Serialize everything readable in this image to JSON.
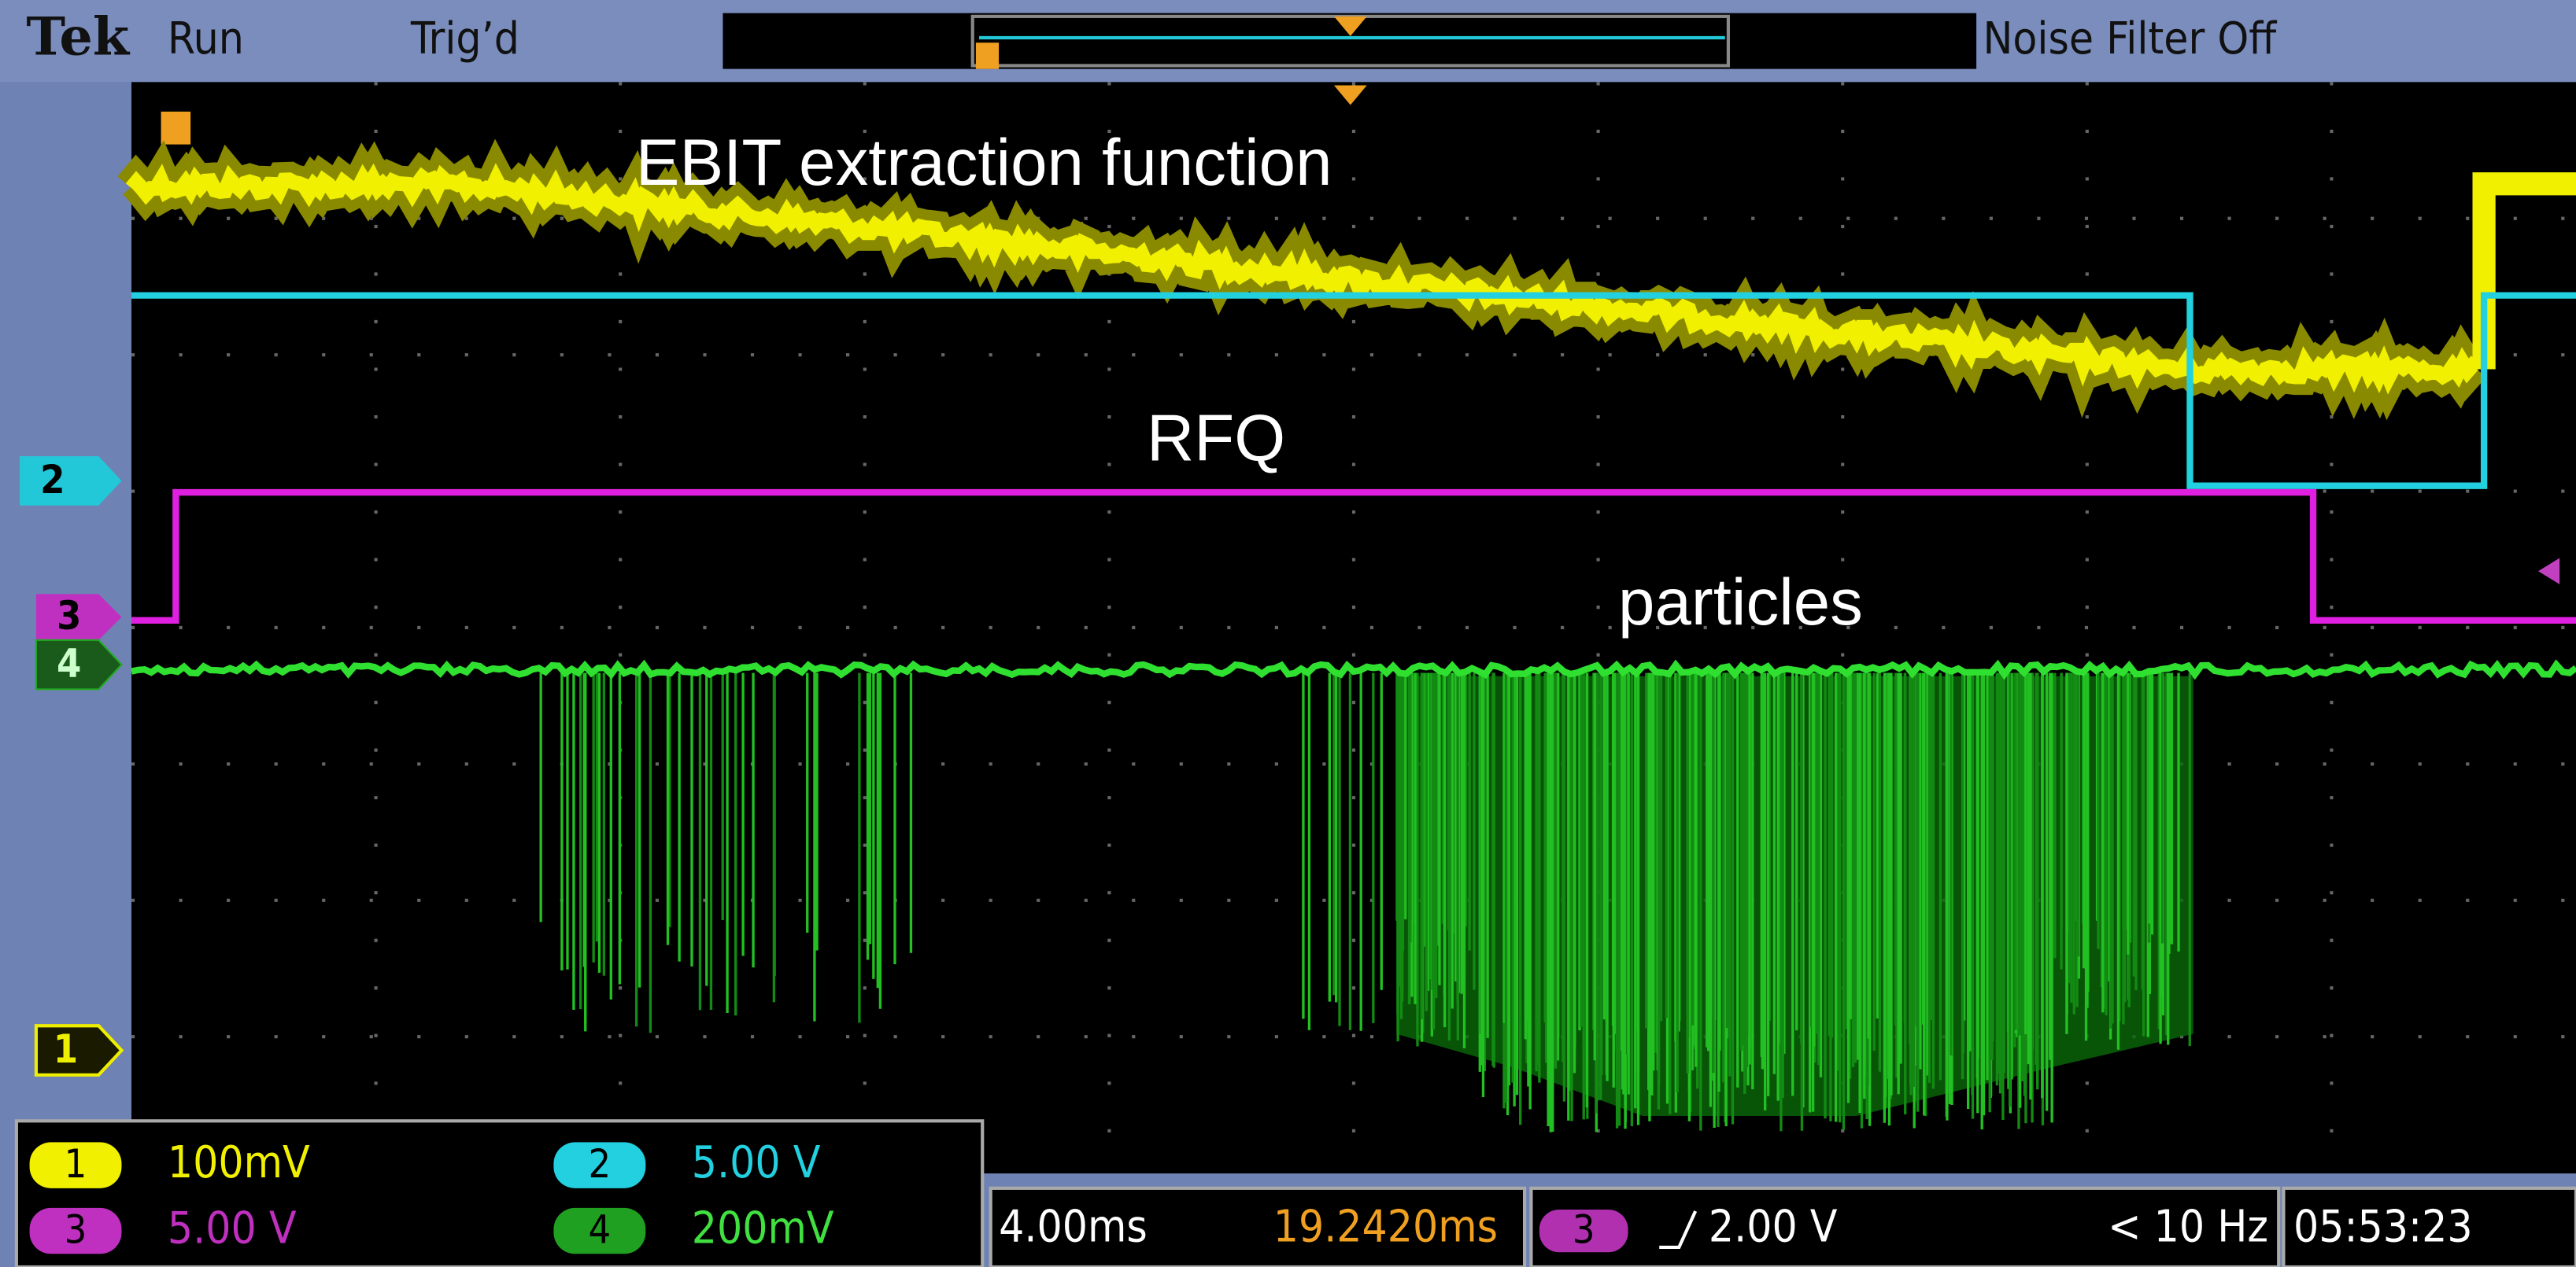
{
  "header": {
    "brand": "Tek",
    "run_state": "Run",
    "trigger_state": "Trig’d",
    "noise_filter": "Noise Filter Off"
  },
  "annotations": [
    "EBIT extraction function",
    "RFQ",
    "particles"
  ],
  "channel_markers": [
    "2",
    "3",
    "4",
    "1"
  ],
  "channels": [
    {
      "number": "1",
      "scale": "100mV"
    },
    {
      "number": "2",
      "scale": "5.00 V"
    },
    {
      "number": "3",
      "scale": "5.00 V"
    },
    {
      "number": "4",
      "scale": "200mV"
    }
  ],
  "timebase": {
    "scale": "4.00ms",
    "position": "19.2420ms"
  },
  "trigger": {
    "source": "3",
    "level": "2.00 V",
    "frequency": "< 10 Hz"
  },
  "clock": "05:53:23"
}
